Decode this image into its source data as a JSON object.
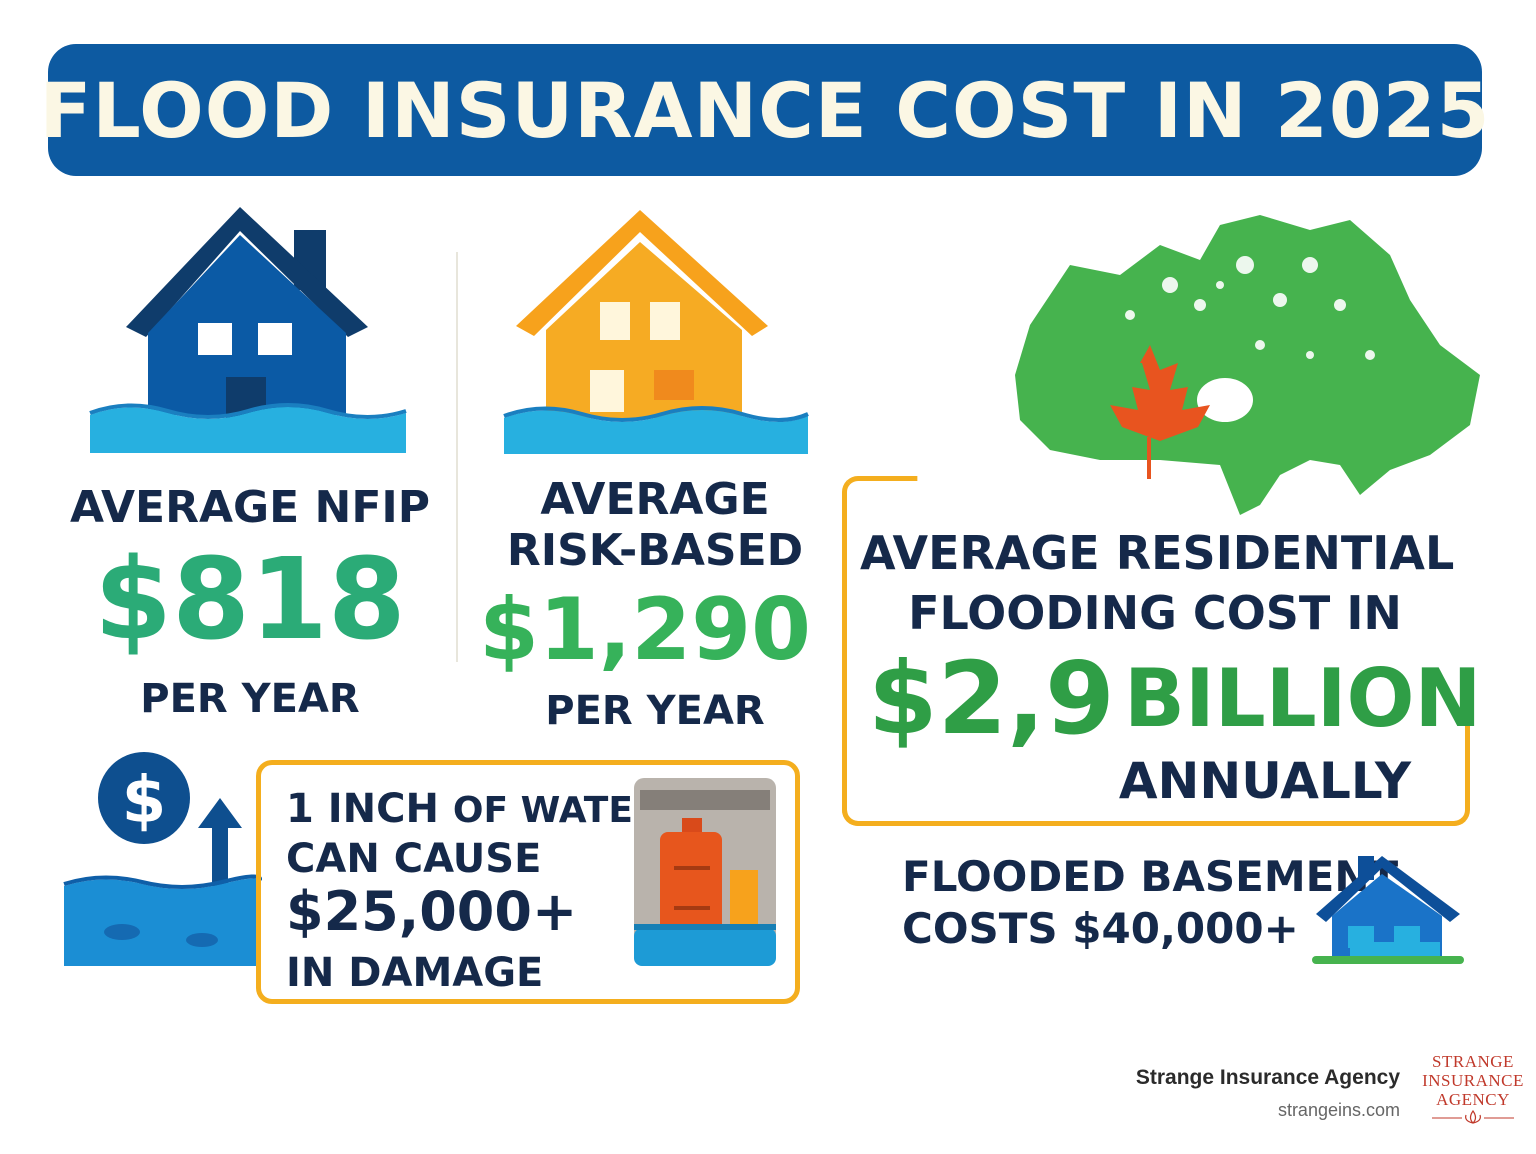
{
  "header": {
    "title": "FLOOD INSURANCE COST IN 2025"
  },
  "nfip": {
    "label": "AVERAGE NFIP",
    "amount": "$818",
    "period": "PER YEAR"
  },
  "risk_based": {
    "label_line1": "AVERAGE",
    "label_line2": "RISK-BASED",
    "amount": "$1,290",
    "period": "PER YEAR"
  },
  "canada": {
    "line1": "AVERAGE RESIDENTIAL",
    "line2": "FLOODING COST IN",
    "amount": "$2,9",
    "unit": "BILLION",
    "period": "ANNUALLY"
  },
  "water_damage": {
    "line1_a": "1 INCH",
    "line1_b": "OF WATER",
    "line2": "CAN CAUSE",
    "amount": "$25,000+",
    "line4": "IN DAMAGE"
  },
  "basement": {
    "line1": "FLOODED BASEMENT",
    "line2": "COSTS $40,000+"
  },
  "brand": {
    "name": "Strange Insurance Agency",
    "url": "strangeins.com",
    "logo_line1": "STRANGE",
    "logo_line2": "INSURANCE",
    "logo_line3": "AGENCY"
  },
  "colors": {
    "title_bg": "#0d5aa1",
    "navy": "#15294a",
    "teal_green": "#2bab77",
    "green": "#3aa84d",
    "orange": "#f4ae1e",
    "water": "#27b0e0"
  },
  "icons": [
    "house-flood-blue-icon",
    "house-flood-orange-icon",
    "canada-map-icon",
    "maple-leaf-icon",
    "dollar-coin-icon",
    "up-arrow-icon",
    "water-heater-icon",
    "small-house-icon"
  ]
}
